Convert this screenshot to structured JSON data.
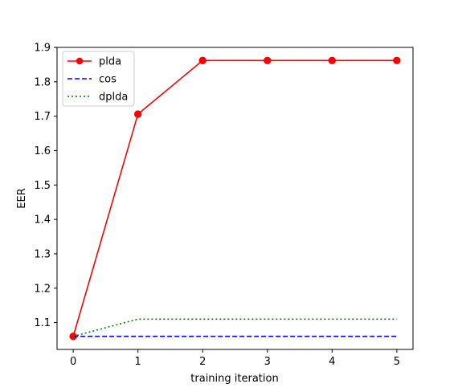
{
  "chart_data": {
    "type": "line",
    "title": "",
    "xlabel": "training iteration",
    "ylabel": "EER",
    "x": [
      0,
      1,
      2,
      3,
      4,
      5
    ],
    "xlim": [
      -0.25,
      5.25
    ],
    "ylim": [
      1.022,
      1.9
    ],
    "xticks": [
      0,
      1,
      2,
      3,
      4,
      5
    ],
    "yticks": [
      1.1,
      1.2,
      1.3,
      1.4,
      1.5,
      1.6,
      1.7,
      1.8,
      1.9
    ],
    "grid": false,
    "legend_position": "top-left",
    "series": [
      {
        "name": "plda",
        "values": [
          1.06,
          1.706,
          1.862,
          1.862,
          1.862,
          1.862
        ],
        "color": "#ff0000",
        "style": "solid",
        "marker": "circle"
      },
      {
        "name": "cos",
        "values": [
          1.06,
          1.06,
          1.06,
          1.06,
          1.06,
          1.06
        ],
        "color": "#0000ff",
        "style": "dashed",
        "marker": "none"
      },
      {
        "name": "dplda",
        "values": [
          1.06,
          1.11,
          1.11,
          1.11,
          1.11,
          1.11
        ],
        "color": "#008000",
        "style": "dotted",
        "marker": "none"
      }
    ]
  }
}
